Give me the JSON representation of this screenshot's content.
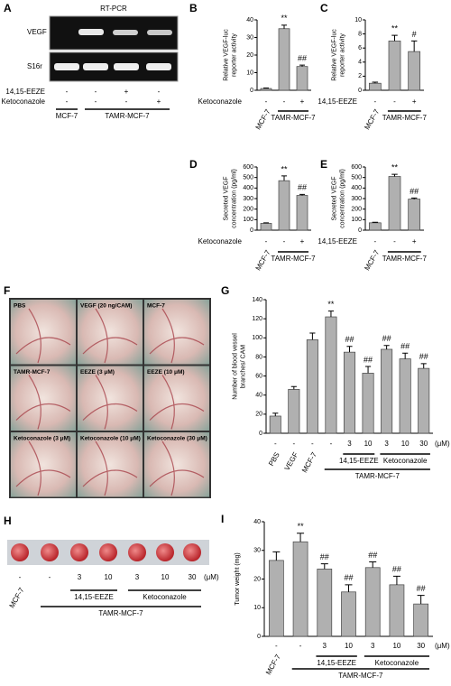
{
  "gel": {
    "panel": "A",
    "title": "RT-PCR",
    "lanes": [
      "VEGF",
      "S16r"
    ],
    "rows": [
      {
        "name": "14,15-EEZE",
        "cells": [
          "-",
          "-",
          "+",
          "-"
        ]
      },
      {
        "name": "Ketoconazole",
        "cells": [
          "-",
          "-",
          "-",
          "+"
        ]
      }
    ],
    "groups": [
      "MCF-7",
      "TAMR-MCF-7"
    ]
  },
  "cam_photos": {
    "panel": "F",
    "labels": [
      "PBS",
      "VEGF (20 ng/CAM)",
      "MCF-7",
      "TAMR-MCF-7",
      "EEZE (3 μM)",
      "EEZE (10 μM)",
      "Ketoconazole (3 μM)",
      "Ketoconazole (10 μM)",
      "Ketoconazole (30 μM)"
    ]
  },
  "tumor_photos": {
    "panel": "H",
    "rows": [
      {
        "cells": [
          "-",
          "-",
          "3",
          "10",
          "3",
          "10",
          "30"
        ]
      }
    ],
    "unit": "(μM)",
    "groups": [
      "MCF-7",
      "14,15-EEZE",
      "Ketoconazole",
      "TAMR-MCF-7"
    ]
  },
  "chart_data": [
    {
      "panel": "B",
      "type": "bar",
      "ylabel": [
        "Relative VEGF-luc",
        "reporter activity"
      ],
      "values": [
        1,
        35,
        13.5
      ],
      "errors": [
        0.3,
        2,
        0.8
      ],
      "annotations": [
        null,
        "**",
        "##"
      ],
      "ylim": [
        0,
        40
      ],
      "yticks": [
        0,
        10,
        20,
        30,
        40
      ],
      "color": "#b0b0b0",
      "rows": [
        {
          "name": "Ketoconazole",
          "cells": [
            "-",
            "-",
            "+"
          ]
        }
      ],
      "groups": [
        "MCF-7",
        "TAMR-MCF-7"
      ]
    },
    {
      "panel": "C",
      "type": "bar",
      "ylabel": [
        "Relative VEGF-luc",
        "reporter activity"
      ],
      "values": [
        1,
        7,
        5.5
      ],
      "errors": [
        0.15,
        0.8,
        1.5
      ],
      "annotations": [
        null,
        "**",
        "#"
      ],
      "ylim": [
        0,
        10
      ],
      "yticks": [
        0,
        2,
        4,
        6,
        8,
        10
      ],
      "color": "#b0b0b0",
      "rows": [
        {
          "name": "14,15-EEZE",
          "cells": [
            "-",
            "-",
            "+"
          ]
        }
      ],
      "groups": [
        "MCF-7",
        "TAMR-MCF-7"
      ]
    },
    {
      "panel": "D",
      "type": "bar",
      "ylabel": [
        "Secreted VEGF",
        "concentration (pg/ml)"
      ],
      "values": [
        65,
        470,
        330
      ],
      "errors": [
        5,
        45,
        10
      ],
      "annotations": [
        null,
        "**",
        "##"
      ],
      "ylim": [
        0,
        600
      ],
      "yticks": [
        0,
        100,
        200,
        300,
        400,
        500,
        600
      ],
      "color": "#b0b0b0",
      "rows": [
        {
          "name": "Ketoconazole",
          "cells": [
            "-",
            "-",
            "+"
          ]
        }
      ],
      "groups": [
        "MCF-7",
        "TAMR-MCF-7"
      ]
    },
    {
      "panel": "E",
      "type": "bar",
      "ylabel": [
        "Secreted VEGF",
        "concentration (pg/ml)"
      ],
      "values": [
        70,
        510,
        295
      ],
      "errors": [
        5,
        20,
        10
      ],
      "annotations": [
        null,
        "**",
        "##"
      ],
      "ylim": [
        0,
        600
      ],
      "yticks": [
        0,
        100,
        200,
        300,
        400,
        500,
        600
      ],
      "color": "#b0b0b0",
      "rows": [
        {
          "name": "14,15-EEZE",
          "cells": [
            "-",
            "-",
            "+"
          ]
        }
      ],
      "groups": [
        "MCF-7",
        "TAMR-MCF-7"
      ]
    },
    {
      "panel": "G",
      "type": "bar",
      "ylabel": [
        "Number of blood vessel",
        "branches/ CAM"
      ],
      "values": [
        18,
        46,
        98,
        122,
        85,
        63,
        88,
        78,
        68
      ],
      "errors": [
        3,
        3,
        7,
        6,
        6,
        7,
        4,
        6,
        5
      ],
      "annotations": [
        null,
        null,
        null,
        "**",
        "##",
        "##",
        "##",
        "##",
        "##"
      ],
      "ylim": [
        0,
        140
      ],
      "yticks": [
        0,
        20,
        40,
        60,
        80,
        100,
        120,
        140
      ],
      "color": "#b0b0b0",
      "rows": [
        {
          "cells": [
            "-",
            "-",
            "-",
            "-",
            "3",
            "10",
            "3",
            "10",
            "30"
          ]
        }
      ],
      "unit": "(μM)",
      "groups": [
        "PBS",
        "VEGF",
        "MCF-7",
        "14,15-EEZE",
        "Ketoconazole",
        "TAMR-MCF-7"
      ]
    },
    {
      "panel": "I",
      "type": "bar",
      "ylabel": [
        "Tumor weight (mg)"
      ],
      "values": [
        26.5,
        33,
        23.5,
        15.5,
        24,
        18,
        11.3
      ],
      "errors": [
        3,
        3,
        1.8,
        2.5,
        2,
        3,
        3
      ],
      "annotations": [
        null,
        "**",
        "##",
        "##",
        "##",
        "##",
        "##"
      ],
      "ylim": [
        0,
        40
      ],
      "yticks": [
        0,
        10,
        20,
        30,
        40
      ],
      "color": "#b0b0b0",
      "rows": [
        {
          "cells": [
            "-",
            "-",
            "3",
            "10",
            "3",
            "10",
            "30"
          ]
        }
      ],
      "unit": "(μM)",
      "groups": [
        "MCF-7",
        "14,15-EEZE",
        "Ketoconazole",
        "TAMR-MCF-7"
      ]
    }
  ]
}
